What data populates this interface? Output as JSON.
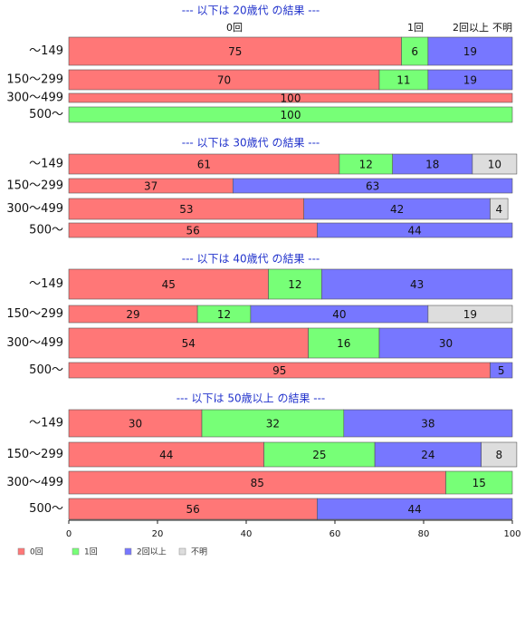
{
  "chart_data": {
    "type": "bar",
    "orientation": "horizontal",
    "stacked": true,
    "xlim": [
      0,
      100
    ],
    "x_ticks": [
      "0",
      "20",
      "40",
      "60",
      "80",
      "100"
    ],
    "column_headers": [
      "0回",
      "1回",
      "2回以上",
      "不明"
    ],
    "series": [
      {
        "name": "0回",
        "color": "#ff7777"
      },
      {
        "name": "1回",
        "color": "#77ff77"
      },
      {
        "name": "2回以上",
        "color": "#7777ff"
      },
      {
        "name": "不明",
        "color": "#dddddd"
      }
    ],
    "groups": [
      {
        "title": "--- 以下は 20歳代 の結果 ---",
        "rows": [
          {
            "category": "～149",
            "values": [
              75,
              6,
              19,
              0
            ]
          },
          {
            "category": "150～299",
            "values": [
              70,
              11,
              19,
              0
            ]
          },
          {
            "category": "300～499",
            "values": [
              100,
              0,
              0,
              0
            ]
          },
          {
            "category": "500～",
            "values": [
              0,
              100,
              0,
              0
            ]
          }
        ]
      },
      {
        "title": "--- 以下は 30歳代 の結果 ---",
        "rows": [
          {
            "category": "～149",
            "values": [
              61,
              12,
              18,
              10
            ]
          },
          {
            "category": "150～299",
            "values": [
              37,
              0,
              63,
              0
            ]
          },
          {
            "category": "300～499",
            "values": [
              53,
              0,
              42,
              4
            ]
          },
          {
            "category": "500～",
            "values": [
              56,
              0,
              44,
              0
            ]
          }
        ]
      },
      {
        "title": "--- 以下は 40歳代 の結果 ---",
        "rows": [
          {
            "category": "～149",
            "values": [
              45,
              12,
              43,
              0
            ]
          },
          {
            "category": "150～299",
            "values": [
              29,
              12,
              40,
              19
            ]
          },
          {
            "category": "300～499",
            "values": [
              54,
              16,
              30,
              0
            ]
          },
          {
            "category": "500～",
            "values": [
              95,
              0,
              5,
              0
            ]
          }
        ]
      },
      {
        "title": "--- 以下は 50歳以上 の結果 ---",
        "rows": [
          {
            "category": "～149",
            "values": [
              30,
              32,
              38,
              0
            ]
          },
          {
            "category": "150～299",
            "values": [
              44,
              25,
              24,
              8
            ]
          },
          {
            "category": "300～499",
            "values": [
              85,
              15,
              0,
              0
            ]
          },
          {
            "category": "500～",
            "values": [
              56,
              0,
              44,
              0
            ]
          }
        ]
      }
    ],
    "grid": false,
    "legend_position": "bottom-left"
  }
}
